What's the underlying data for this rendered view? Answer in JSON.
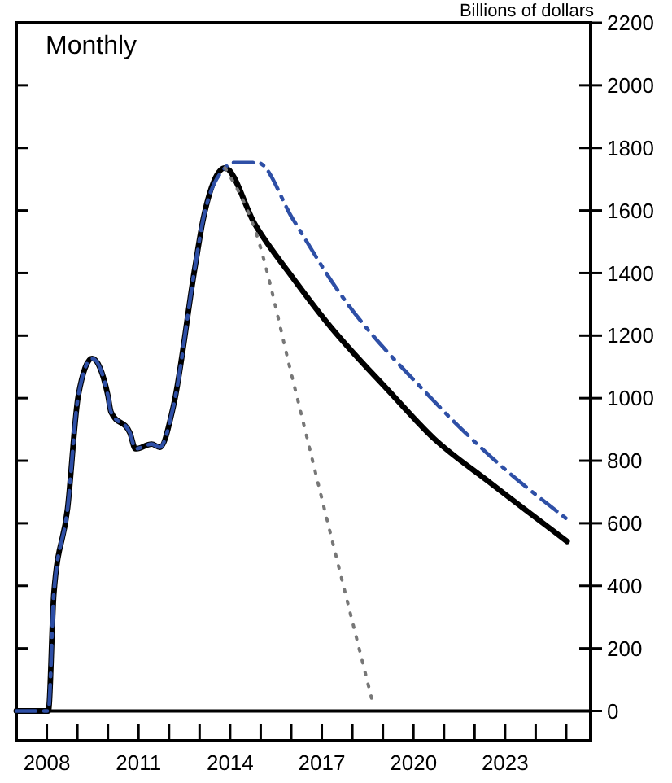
{
  "chart_data": {
    "type": "line",
    "title": "Monthly",
    "ylabel": "Billions of dollars",
    "xlim": [
      2007,
      2025.8
    ],
    "ylim": [
      -95,
      2200
    ],
    "xticks": [
      2008,
      {
        "value": 2009,
        "label": null
      },
      {
        "value": 2010,
        "label": null
      },
      2011,
      {
        "value": 2012,
        "label": null
      },
      {
        "value": 2013,
        "label": null
      },
      2014,
      {
        "value": 2015,
        "label": null
      },
      {
        "value": 2016,
        "label": null
      },
      2017,
      {
        "value": 2018,
        "label": null
      },
      {
        "value": 2019,
        "label": null
      },
      2020,
      {
        "value": 2021,
        "label": null
      },
      {
        "value": 2022,
        "label": null
      },
      2023,
      {
        "value": 2024,
        "label": null
      },
      {
        "value": 2025,
        "label": null
      }
    ],
    "yticks": [
      0,
      200,
      400,
      600,
      800,
      1000,
      1200,
      1400,
      1600,
      1800,
      2000,
      2200
    ],
    "grid": false,
    "marker": "none",
    "ref_lines": [
      {
        "axis": "y",
        "value": 0,
        "color": "#000000"
      }
    ],
    "series": [
      {
        "color": "#000000",
        "line_style": "solid",
        "x": [
          2007,
          2008.05,
          2008.23,
          2008.68,
          2009.03,
          2009.48,
          2010.0,
          2010.1,
          2010.72,
          2010.9,
          2011.43,
          2011.7,
          2012.14,
          2012.85,
          2013.12,
          2013.83,
          2014.81,
          2016.05,
          2017.12,
          2019.25,
          2020.68,
          2022.45,
          2025.03
        ],
        "values": [
          0,
          0,
          375,
          648,
          1008,
          1127,
          1008,
          956,
          889,
          838,
          853,
          843,
          973,
          1419,
          1573,
          1736,
          1556,
          1385,
          1248,
          1017,
          870,
          734,
          542
        ]
      },
      {
        "color": "#2e4fa6",
        "line_style": "dashdot",
        "x": [
          2007,
          2008.05,
          2008.23,
          2008.68,
          2009.03,
          2009.48,
          2010.0,
          2010.1,
          2010.72,
          2010.9,
          2011.43,
          2011.7,
          2012.14,
          2012.85,
          2013.12,
          2013.83,
          2014.1,
          2014.9,
          2016.05,
          2017.48,
          2020.5,
          2022.45,
          2025.03
        ],
        "values": [
          0,
          0,
          375,
          648,
          1008,
          1127,
          1008,
          956,
          889,
          838,
          853,
          843,
          973,
          1419,
          1573,
          1736,
          1753,
          1753,
          1573,
          1351,
          1008,
          820,
          613
        ]
      },
      {
        "color": "#777777",
        "line_style": "dotted",
        "x": [
          2013.83,
          2014.81,
          2016.05,
          2017.12,
          2018.63
        ],
        "values": [
          1736,
          1539,
          1059,
          632,
          41
        ]
      }
    ]
  }
}
